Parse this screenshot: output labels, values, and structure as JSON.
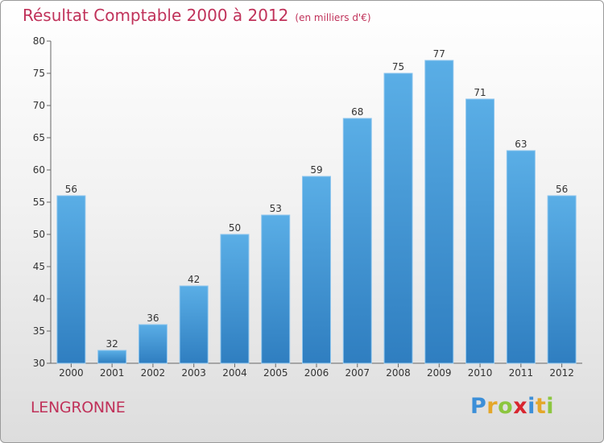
{
  "chart_data": {
    "type": "bar",
    "title": "Résultat Comptable 2000 à 2012",
    "subtitle": "(en milliers d'€)",
    "categories": [
      "2000",
      "2001",
      "2002",
      "2003",
      "2004",
      "2005",
      "2006",
      "2007",
      "2008",
      "2009",
      "2010",
      "2011",
      "2012"
    ],
    "values": [
      56,
      32,
      36,
      42,
      50,
      53,
      59,
      68,
      75,
      77,
      71,
      63,
      56
    ],
    "ylim": [
      30,
      80
    ],
    "yticks": [
      30,
      35,
      40,
      45,
      50,
      55,
      60,
      65,
      70,
      75,
      80
    ],
    "xlabel": "",
    "ylabel": "",
    "grid": false,
    "bar_color_top": "#5aaee6",
    "bar_color_bottom": "#2f7ec0"
  },
  "footer": {
    "commune": "LENGRONNE",
    "logo_letters": [
      {
        "char": "P",
        "color": "#3c8fd8"
      },
      {
        "char": "r",
        "color": "#e4a72a"
      },
      {
        "char": "o",
        "color": "#8cc63f"
      },
      {
        "char": "x",
        "color": "#d8262f"
      },
      {
        "char": "i",
        "color": "#3c8fd8"
      },
      {
        "char": "t",
        "color": "#e4a72a"
      },
      {
        "char": "i",
        "color": "#8cc63f"
      }
    ]
  }
}
